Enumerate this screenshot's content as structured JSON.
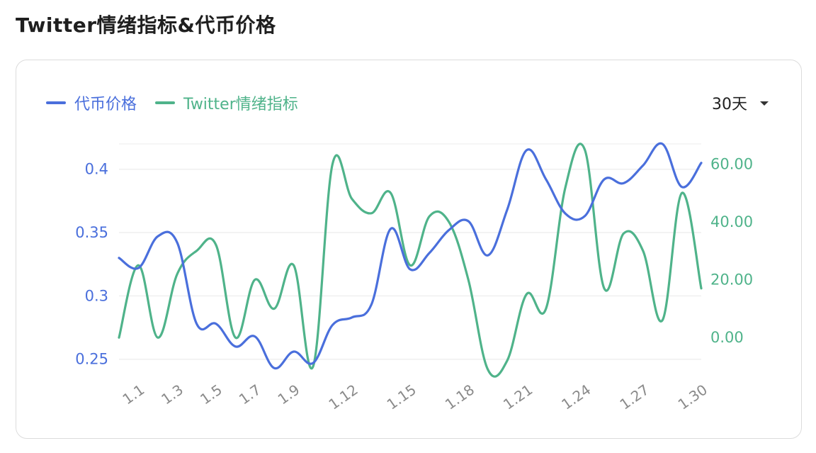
{
  "page": {
    "title": "Twitter情绪指标&代币价格"
  },
  "controls": {
    "range_label": "30天"
  },
  "chart_data": {
    "type": "line",
    "x": [
      "1.0",
      "1.1",
      "1.2",
      "1.3",
      "1.4",
      "1.5",
      "1.6",
      "1.7",
      "1.8",
      "1.9",
      "1.10",
      "1.11",
      "1.12",
      "1.13",
      "1.14",
      "1.15",
      "1.16",
      "1.17",
      "1.18",
      "1.19",
      "1.20",
      "1.21",
      "1.22",
      "1.23",
      "1.24",
      "1.25",
      "1.26",
      "1.27",
      "1.28",
      "1.29",
      "1.30"
    ],
    "x_tick_labels": [
      "1.1",
      "1.3",
      "1.5",
      "1.7",
      "1.9",
      "1.12",
      "1.15",
      "1.18",
      "1.21",
      "1.24",
      "1.27",
      "1.30"
    ],
    "series": [
      {
        "name": "代币价格",
        "axis": "left",
        "color": "#4a6fdc",
        "values": [
          0.33,
          0.322,
          0.347,
          0.342,
          0.278,
          0.278,
          0.26,
          0.268,
          0.243,
          0.256,
          0.247,
          0.277,
          0.283,
          0.293,
          0.353,
          0.321,
          0.334,
          0.352,
          0.359,
          0.332,
          0.368,
          0.415,
          0.392,
          0.365,
          0.363,
          0.392,
          0.389,
          0.403,
          0.42,
          0.386,
          0.405
        ]
      },
      {
        "name": "Twitter情绪指标",
        "axis": "right",
        "color": "#4fb38a",
        "values": [
          0,
          25,
          0,
          22,
          30,
          32,
          0,
          20,
          10,
          25,
          -10,
          60,
          48,
          43,
          50,
          25,
          42,
          40,
          20,
          -11,
          -8,
          15,
          10,
          52,
          65,
          17,
          36,
          30,
          6,
          50,
          17
        ]
      }
    ],
    "y_left": {
      "ticks": [
        "0.25",
        "0.3",
        "0.35",
        "0.4"
      ],
      "lim": [
        0.242,
        0.42
      ]
    },
    "y_right": {
      "ticks": [
        "0.00",
        "20.00",
        "40.00",
        "60.00"
      ],
      "lim": [
        -11,
        67
      ]
    },
    "grid": "horizontal",
    "legend": "top-left"
  }
}
